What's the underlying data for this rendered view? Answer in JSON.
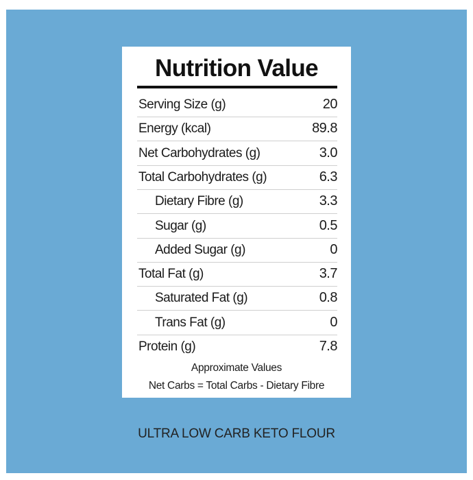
{
  "label": {
    "title": "Nutrition Value",
    "rows": [
      {
        "label": "Serving Size (g)",
        "value": "20"
      },
      {
        "label": "Energy (kcal)",
        "value": "89.8"
      },
      {
        "label": "Net Carbohydrates (g)",
        "value": "3.0"
      },
      {
        "label": "Total Carbohydrates (g)",
        "value": "6.3",
        "sub": [
          {
            "label": "Dietary Fibre (g)",
            "value": "3.3"
          },
          {
            "label": "Sugar (g)",
            "value": "0.5"
          },
          {
            "label": "Added Sugar (g)",
            "value": "0"
          }
        ]
      },
      {
        "label": "Total Fat (g)",
        "value": "3.7",
        "sub": [
          {
            "label": "Saturated Fat (g)",
            "value": "0.8"
          },
          {
            "label": "Trans Fat (g)",
            "value": "0"
          }
        ]
      },
      {
        "label": "Protein (g)",
        "value": "7.8"
      }
    ],
    "notes": [
      "Approximate Values",
      "Net Carbs = Total Carbs - Dietary Fibre"
    ]
  },
  "caption": "ULTRA LOW CARB KETO FLOUR"
}
